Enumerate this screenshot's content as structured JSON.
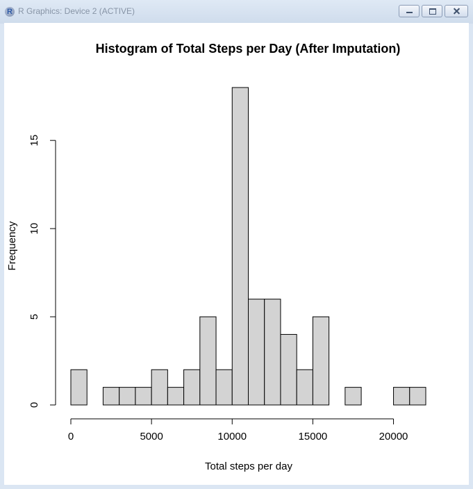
{
  "window": {
    "title": "R Graphics: Device 2 (ACTIVE)",
    "icon": "r-logo-icon",
    "buttons": [
      "minimize-icon",
      "restore-icon",
      "close-icon"
    ]
  },
  "chart_data": {
    "type": "bar",
    "title": "Histogram of Total Steps per Day (After Imputation)",
    "xlabel": "Total steps per day",
    "ylabel": "Frequency",
    "bins": [
      [
        0,
        1000
      ],
      [
        1000,
        2000
      ],
      [
        2000,
        3000
      ],
      [
        3000,
        4000
      ],
      [
        4000,
        5000
      ],
      [
        5000,
        6000
      ],
      [
        6000,
        7000
      ],
      [
        7000,
        8000
      ],
      [
        8000,
        9000
      ],
      [
        9000,
        10000
      ],
      [
        10000,
        11000
      ],
      [
        11000,
        12000
      ],
      [
        12000,
        13000
      ],
      [
        13000,
        14000
      ],
      [
        14000,
        15000
      ],
      [
        15000,
        16000
      ],
      [
        16000,
        17000
      ],
      [
        17000,
        18000
      ],
      [
        18000,
        19000
      ],
      [
        19000,
        20000
      ],
      [
        20000,
        21000
      ],
      [
        21000,
        22000
      ]
    ],
    "values": [
      2,
      0,
      1,
      1,
      1,
      2,
      1,
      2,
      5,
      2,
      18,
      6,
      6,
      4,
      2,
      5,
      0,
      1,
      0,
      0,
      1,
      1
    ],
    "xlim": [
      0,
      22000
    ],
    "ylim": [
      0,
      18
    ],
    "x_ticks": [
      "0",
      "5000",
      "10000",
      "15000",
      "20000"
    ],
    "y_ticks": [
      "0",
      "5",
      "10",
      "15"
    ],
    "bar_fill": "#d3d3d3",
    "bar_stroke": "#000000",
    "grid": false,
    "legend": "none"
  }
}
